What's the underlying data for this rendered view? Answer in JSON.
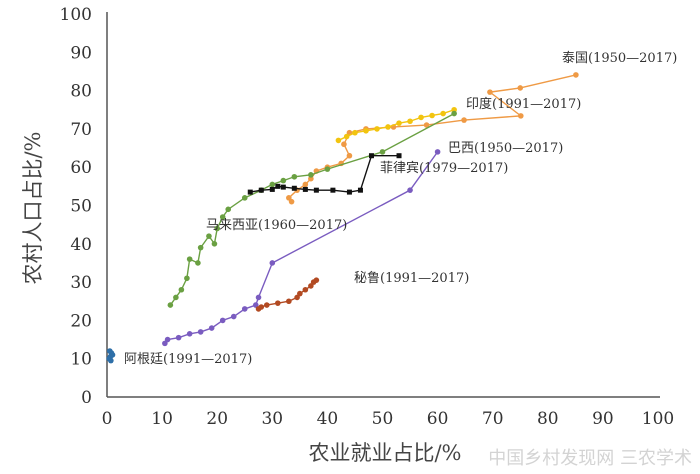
{
  "chart_data": {
    "type": "line",
    "xlabel": "农业就业占比/%",
    "ylabel": "农村人口占比/%",
    "xlim": [
      0,
      100
    ],
    "ylim": [
      0,
      100
    ],
    "xticks": [
      "0",
      "10",
      "20",
      "30",
      "40",
      "50",
      "60",
      "70",
      "80",
      "90",
      "100"
    ],
    "yticks": [
      "0",
      "10",
      "20",
      "30",
      "40",
      "50",
      "60",
      "70",
      "80",
      "90",
      "100"
    ],
    "grid": false,
    "legend": "none (inline labels)",
    "series": [
      {
        "name": "泰国(1950—2017)",
        "color": "#ef9a45",
        "x": [
          85.1,
          75,
          69.5,
          75.1,
          64.8,
          58,
          52,
          47,
          44,
          43,
          44,
          42.5,
          40,
          38,
          37,
          36,
          34.5,
          33,
          33.5
        ],
        "y": [
          84.1,
          80.7,
          79.6,
          73.4,
          72.3,
          71,
          70.5,
          70,
          69,
          66,
          63,
          61,
          60,
          59,
          57,
          55.5,
          54,
          52,
          51
        ]
      },
      {
        "name": "印度(1991—2017)",
        "color": "#f2c40f",
        "x": [
          63,
          61,
          59,
          57,
          55,
          53,
          51,
          49,
          47,
          45,
          43.5,
          42
        ],
        "y": [
          75,
          74,
          73.5,
          73,
          72,
          71.5,
          70.5,
          70,
          69.5,
          69,
          68,
          67
        ]
      },
      {
        "name": "马来西亚(1960—2017)",
        "color": "#6aa042",
        "x": [
          63,
          50,
          40,
          37,
          34,
          32,
          30,
          28,
          25,
          22,
          21,
          20,
          19.5,
          18.5,
          17,
          16.5,
          15,
          14.5,
          13.5,
          12.5,
          11.5
        ],
        "y": [
          74,
          64,
          59.5,
          58,
          57.5,
          56.5,
          55.5,
          54,
          52,
          49,
          47,
          44,
          40,
          42,
          39,
          35,
          36,
          31,
          28,
          26,
          24
        ]
      },
      {
        "name": "菲律宾(1979—2017)",
        "color": "#111111",
        "x": [
          53,
          48,
          46,
          44,
          41,
          38,
          36,
          34,
          32,
          31,
          30,
          28,
          26
        ],
        "y": [
          63,
          63,
          54,
          53.5,
          54,
          54,
          54.2,
          54.5,
          54.8,
          55,
          54.2,
          54,
          53.5
        ]
      },
      {
        "name": "巴西(1950—2017)",
        "color": "#7a5cc0",
        "x": [
          60,
          55,
          30,
          27.5,
          27,
          25,
          23,
          21,
          19,
          17,
          15,
          13,
          11,
          10.5
        ],
        "y": [
          64,
          54,
          35,
          26,
          24,
          23,
          21,
          20,
          18,
          17,
          16.5,
          15.5,
          15,
          14
        ]
      },
      {
        "name": "秘鲁(1991—2017)",
        "color": "#b24a22",
        "x": [
          38,
          37.5,
          37,
          36,
          35,
          34.5,
          33,
          31,
          29,
          28,
          27.5
        ],
        "y": [
          30.5,
          30,
          29,
          28,
          27,
          26,
          25,
          24.5,
          24,
          23.5,
          23
        ]
      },
      {
        "name": "阿根廷(1991—2017)",
        "color": "#2e6fa8",
        "x": [
          0.5,
          0.8,
          1,
          0.6,
          0.4,
          0.7
        ],
        "y": [
          12,
          11.5,
          11,
          10.5,
          10,
          9.5
        ]
      }
    ]
  },
  "watermark": "中国乡村发现网 三农学术"
}
